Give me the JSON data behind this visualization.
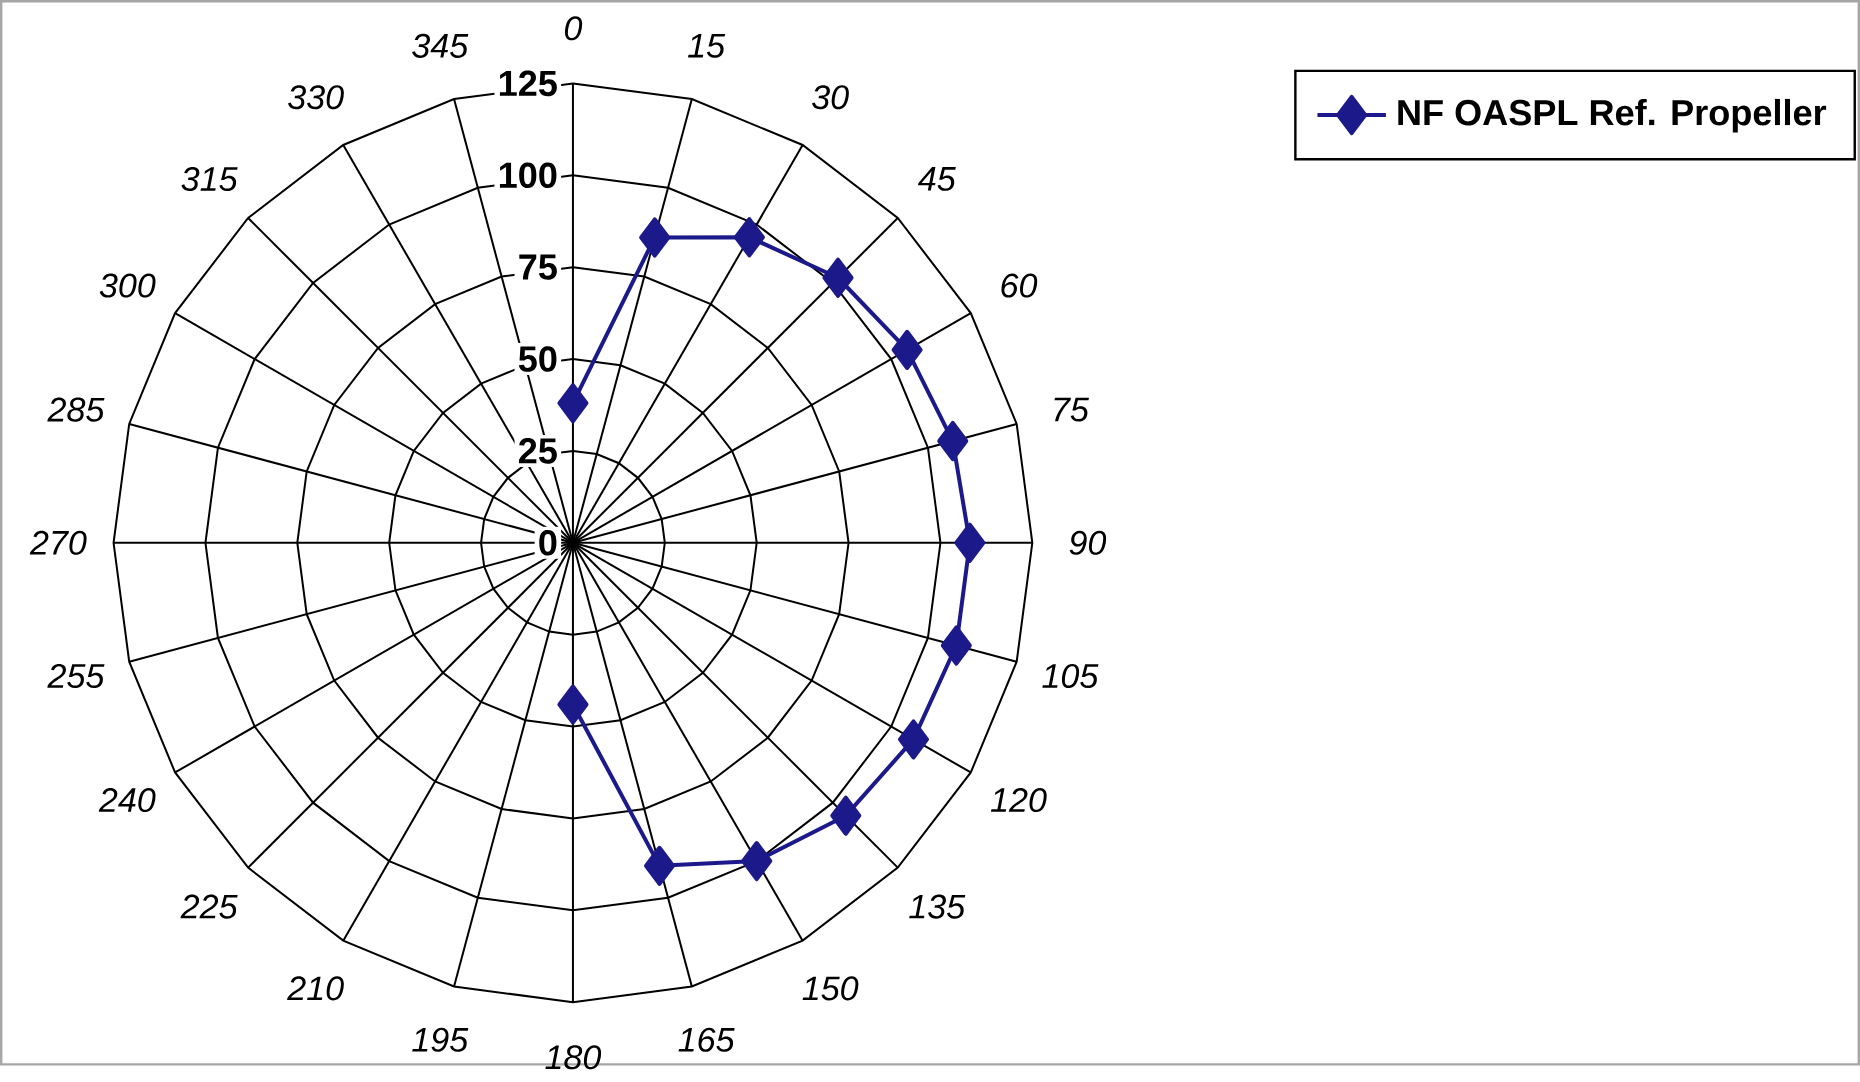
{
  "chart_data": {
    "type": "radar",
    "categories": [
      "0",
      "15",
      "30",
      "45",
      "60",
      "75",
      "90",
      "105",
      "120",
      "135",
      "150",
      "165",
      "180",
      "195",
      "210",
      "225",
      "240",
      "255",
      "270",
      "285",
      "300",
      "315",
      "330",
      "345"
    ],
    "series": [
      {
        "name": "NF OASPL Ref. Propeller",
        "color": "#1c1a8a",
        "values": [
          38,
          86,
          96,
          102,
          105,
          107,
          108,
          108,
          107,
          105,
          100,
          91,
          44,
          null,
          null,
          null,
          null,
          null,
          null,
          null,
          null,
          null,
          null,
          null
        ]
      }
    ],
    "ylim": [
      0,
      125
    ],
    "yticks": [
      0,
      25,
      50,
      75,
      100,
      125
    ],
    "grid": true,
    "legend": "top right",
    "marker": "diamond",
    "line_style": "solid"
  }
}
